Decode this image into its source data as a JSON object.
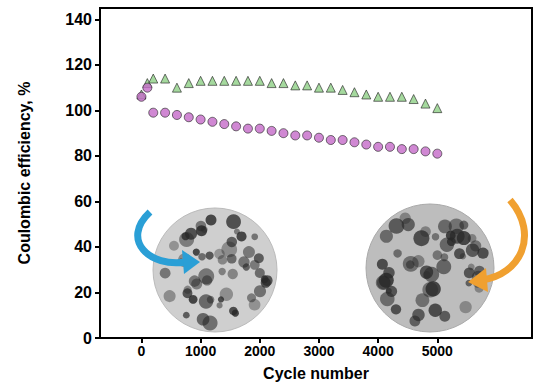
{
  "chart_data": {
    "type": "scatter",
    "x_label": "Cycle number",
    "y_label": "Coulombic efficiency, %",
    "x": [
      0,
      100,
      200,
      400,
      600,
      800,
      1000,
      1200,
      1400,
      1600,
      1800,
      2000,
      2200,
      2400,
      2600,
      2800,
      3000,
      3200,
      3400,
      3600,
      3800,
      4000,
      4200,
      4400,
      4600,
      4800,
      5000
    ],
    "series": [
      {
        "color": "#8fcf86",
        "marker": "triangle",
        "values": [
          107,
          112,
          114,
          114,
          110,
          112,
          113,
          113,
          113,
          113,
          113,
          113,
          112,
          112,
          111,
          111,
          110,
          110,
          109,
          108,
          107,
          106,
          106,
          106,
          105,
          103,
          101
        ]
      },
      {
        "color": "#c46ac8",
        "marker": "circle",
        "values": [
          106,
          110,
          99,
          99,
          98,
          97,
          96,
          95,
          94,
          93,
          92,
          92,
          91,
          90,
          89,
          89,
          88,
          87,
          87,
          86,
          85,
          84,
          84,
          83,
          83,
          82,
          81
        ]
      }
    ],
    "xlim": [
      -700,
      6600
    ],
    "xticks": [
      0,
      1000,
      2000,
      3000,
      4000,
      5000
    ],
    "ylim": [
      0,
      145
    ],
    "yticks": [
      0,
      20,
      40,
      60,
      80,
      100,
      120,
      140
    ],
    "grid": false
  }
}
